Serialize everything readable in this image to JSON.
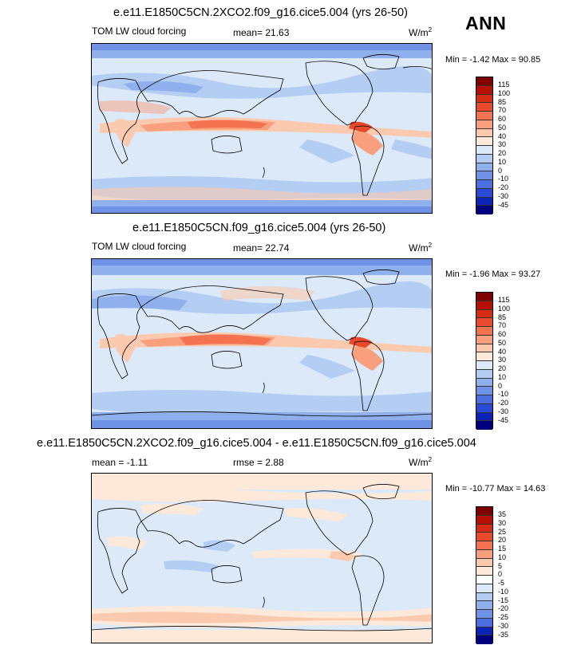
{
  "season": "ANN",
  "units_base": "W/m",
  "units_exp": "2",
  "panels": [
    {
      "title": "e.e11.E1850C5CN.2XCO2.f09_g16.cice5.004 (yrs 26-50)",
      "left_label": "TOM LW cloud forcing",
      "center_label": "mean=  21.63",
      "minmax": "Min = -1.42 Max = 90.85",
      "levels": [
        "115",
        "100",
        "85",
        "70",
        "60",
        "50",
        "40",
        "30",
        "20",
        "10",
        "0",
        "-10",
        "-20",
        "-30",
        "-45"
      ],
      "colors": [
        "#7f0000",
        "#b50f06",
        "#d62c16",
        "#ea4a2c",
        "#f47250",
        "#f99f7e",
        "#fbcaae",
        "#fde9da",
        "#dce9f8",
        "#b4cdf2",
        "#8fb0ec",
        "#6e92e6",
        "#4c6ee0",
        "#2a4ad6",
        "#0c23b8",
        "#00007c"
      ]
    },
    {
      "title": "e.e11.E1850C5CN.f09_g16.cice5.004 (yrs 26-50)",
      "left_label": "TOM LW cloud forcing",
      "center_label": "mean=  22.74",
      "minmax": "Min = -1.96 Max = 93.27",
      "levels": [
        "115",
        "100",
        "85",
        "70",
        "60",
        "50",
        "40",
        "30",
        "20",
        "10",
        "0",
        "-10",
        "-20",
        "-30",
        "-45"
      ],
      "colors": [
        "#7f0000",
        "#b50f06",
        "#d62c16",
        "#ea4a2c",
        "#f47250",
        "#f99f7e",
        "#fbcaae",
        "#fde9da",
        "#dce9f8",
        "#b4cdf2",
        "#8fb0ec",
        "#6e92e6",
        "#4c6ee0",
        "#2a4ad6",
        "#0c23b8",
        "#00007c"
      ]
    },
    {
      "title": "e.e11.E1850C5CN.2XCO2.f09_g16.cice5.004 - e.e11.E1850C5CN.f09_g16.cice5.004",
      "left_label": "mean =  -1.11",
      "center_label": "rmse =   2.88",
      "minmax": "Min = -10.77 Max =  14.63",
      "levels": [
        "35",
        "30",
        "25",
        "20",
        "15",
        "10",
        "5",
        "0",
        "-5",
        "-10",
        "-15",
        "-20",
        "-25",
        "-30",
        "-35"
      ],
      "colors": [
        "#7f0000",
        "#b50f06",
        "#d62c16",
        "#ea4a2c",
        "#f47250",
        "#f99f7e",
        "#fbcaae",
        "#fde9da",
        "#ffffff",
        "#dce9f8",
        "#b4cdf2",
        "#8fb0ec",
        "#6e92e6",
        "#4c6ee0",
        "#0c23b8",
        "#00007c"
      ]
    }
  ]
}
